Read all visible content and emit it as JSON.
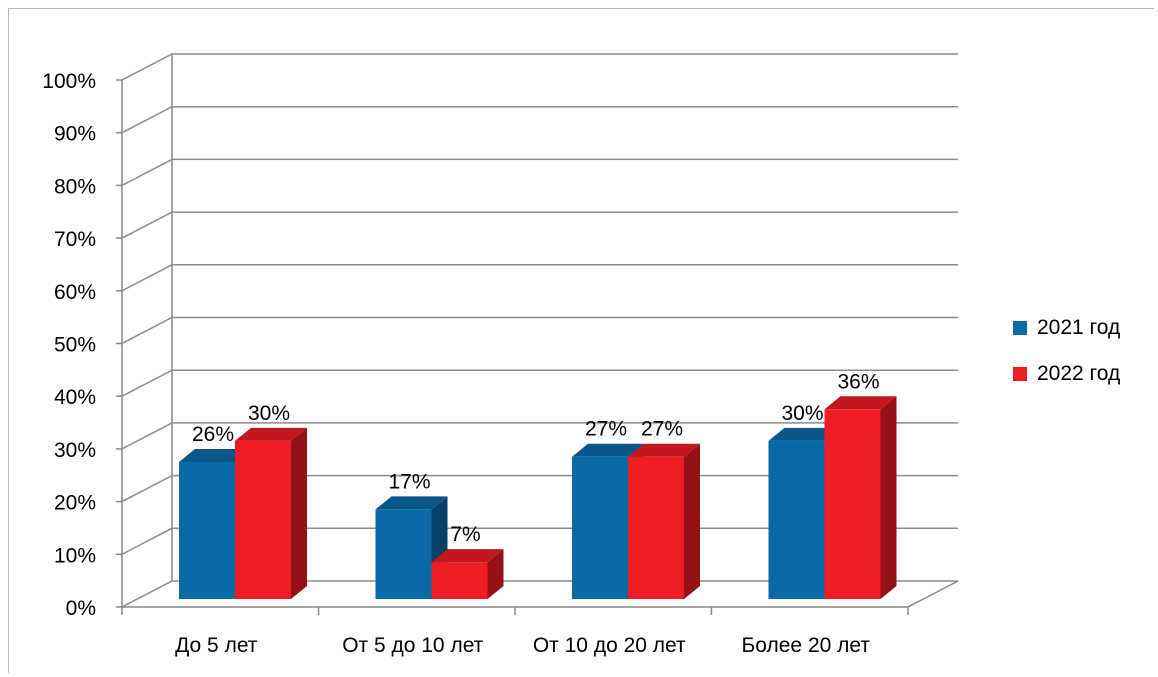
{
  "chart_data": {
    "type": "bar",
    "categories": [
      "До 5 лет",
      "От 5 до 10 лет",
      "От 10 до 20 лет",
      "Более 20 лет"
    ],
    "series": [
      {
        "name": "2021 год",
        "values": [
          26,
          17,
          27,
          30
        ],
        "color": "#0a6aa6"
      },
      {
        "name": "2022 год",
        "values": [
          30,
          7,
          27,
          36
        ],
        "color": "#ee1c24"
      }
    ],
    "data_labels": [
      [
        "26%",
        "17%",
        "27%",
        "30%"
      ],
      [
        "30%",
        "7%",
        "27%",
        "36%"
      ]
    ],
    "yticks": [
      "0%",
      "10%",
      "20%",
      "30%",
      "40%",
      "50%",
      "60%",
      "70%",
      "80%",
      "90%",
      "100%"
    ],
    "ylim": [
      0,
      100
    ],
    "grid": true,
    "style": "3d-clustered-column",
    "legend_position": "right"
  }
}
